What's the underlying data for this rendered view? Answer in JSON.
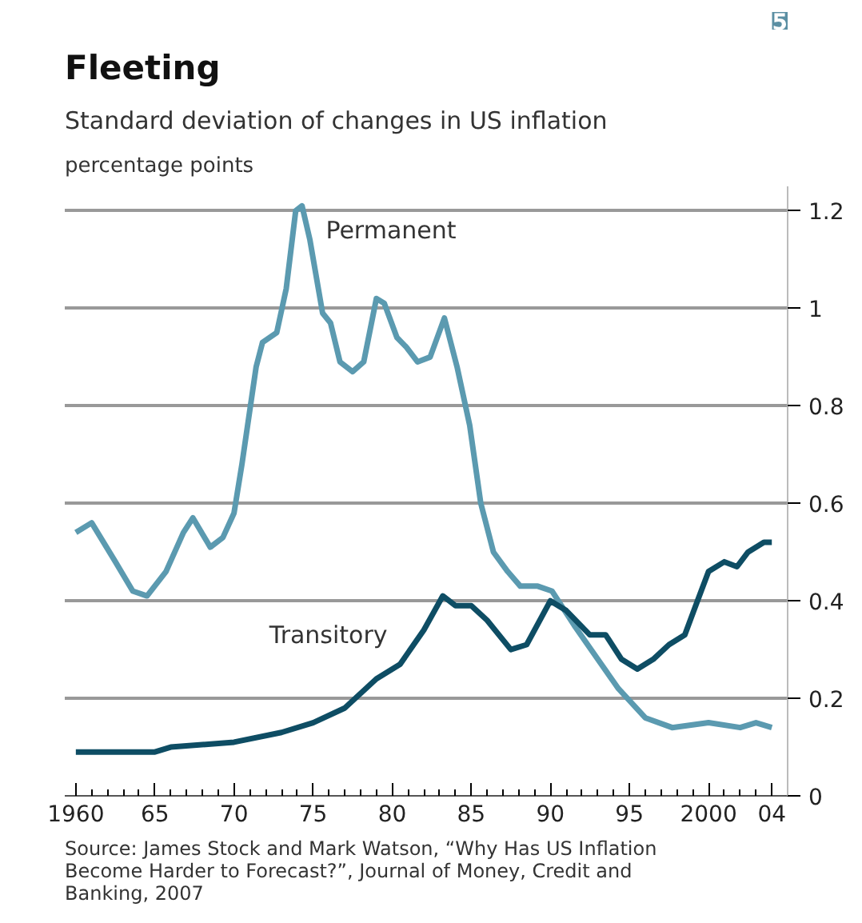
{
  "chart_data": {
    "type": "line",
    "title": "Fleeting",
    "subtitle": "Standard deviation of changes in US inflation",
    "ylabel": "percentage points",
    "annotations": [
      "5",
      "Source: James Stock and Mark Watson, “Why Has US Inflation Become Harder to Forecast?”, Journal of Money, Credit and Banking, 2007"
    ],
    "series": [
      {
        "name": "Permanent",
        "color": "#5b9ab0",
        "x": [
          1960,
          1961,
          1962.5,
          1963.6,
          1964.5,
          1965.7,
          1966.8,
          1967.4,
          1968.5,
          1969.3,
          1970,
          1970.5,
          1971.4,
          1971.8,
          1972.7,
          1973.3,
          1973.9,
          1974.3,
          1974.8,
          1975.6,
          1976.1,
          1976.7,
          1977.5,
          1978.2,
          1979,
          1979.5,
          1980.3,
          1980.9,
          1981.6,
          1982.4,
          1983.3,
          1984.1,
          1984.9,
          1985.6,
          1986.4,
          1987.3,
          1988.1,
          1989.2,
          1990.1,
          1991.5,
          1993,
          1994.3,
          1996,
          1997.7,
          2000,
          2002,
          2003,
          2004
        ],
        "values": [
          0.54,
          0.56,
          0.48,
          0.42,
          0.41,
          0.46,
          0.54,
          0.57,
          0.51,
          0.53,
          0.58,
          0.68,
          0.88,
          0.93,
          0.95,
          1.04,
          1.2,
          1.21,
          1.14,
          0.99,
          0.97,
          0.89,
          0.87,
          0.89,
          1.02,
          1.01,
          0.94,
          0.92,
          0.89,
          0.9,
          0.98,
          0.88,
          0.76,
          0.6,
          0.5,
          0.46,
          0.43,
          0.43,
          0.42,
          0.35,
          0.28,
          0.22,
          0.16,
          0.14,
          0.15,
          0.14,
          0.15,
          0.14
        ]
      },
      {
        "name": "Transitory",
        "color": "#0e4d64",
        "x": [
          1960,
          1965,
          1966,
          1970,
          1973,
          1975,
          1977,
          1979,
          1980.5,
          1982,
          1983.2,
          1984,
          1985,
          1986,
          1987.5,
          1988.5,
          1990,
          1991,
          1992.5,
          1993.5,
          1994.5,
          1995.5,
          1996.5,
          1997.5,
          1998.5,
          1999.3,
          2000,
          2001,
          2001.8,
          2002.5,
          2003.5,
          2004
        ],
        "values": [
          0.09,
          0.09,
          0.1,
          0.11,
          0.13,
          0.15,
          0.18,
          0.24,
          0.27,
          0.34,
          0.41,
          0.39,
          0.39,
          0.36,
          0.3,
          0.31,
          0.4,
          0.38,
          0.33,
          0.33,
          0.28,
          0.26,
          0.28,
          0.31,
          0.33,
          0.4,
          0.46,
          0.48,
          0.47,
          0.5,
          0.52,
          0.52
        ]
      }
    ],
    "xlim": [
      1959.3,
      2005
    ],
    "ylim": [
      0,
      1.25
    ],
    "xticks": [
      {
        "value": 1960,
        "label": "1960"
      },
      {
        "value": 1965,
        "label": "65"
      },
      {
        "value": 1970,
        "label": "70"
      },
      {
        "value": 1975,
        "label": "75"
      },
      {
        "value": 1980,
        "label": "80"
      },
      {
        "value": 1985,
        "label": "85"
      },
      {
        "value": 1990,
        "label": "90"
      },
      {
        "value": 1995,
        "label": "95"
      },
      {
        "value": 2000,
        "label": "2000"
      },
      {
        "value": 2004,
        "label": "04"
      }
    ],
    "yticks": [
      0,
      0.2,
      0.4,
      0.6,
      0.8,
      1.0,
      1.2
    ],
    "grid": "y",
    "marker": "none",
    "line_style": "solid"
  }
}
